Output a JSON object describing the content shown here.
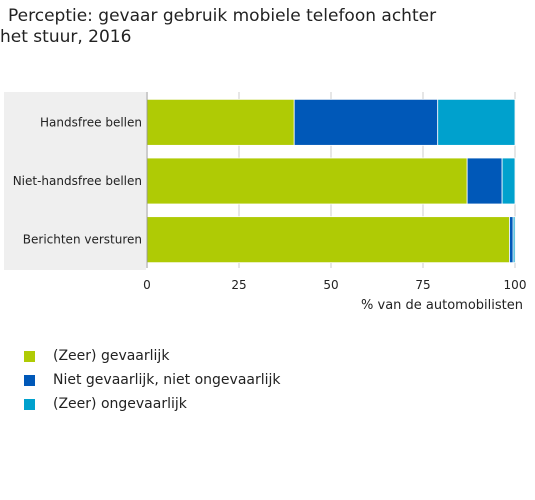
{
  "title_lines": [
    "Perceptie: gevaar gebruik mobiele telefoon achter",
    "het stuur, 2016"
  ],
  "chart_data": {
    "type": "bar",
    "orientation": "horizontal",
    "stacked": true,
    "title": "Perceptie: gevaar gebruik mobiele telefoon achter het stuur, 2016",
    "categories": [
      "Handsfree bellen",
      "Niet-handsfree bellen",
      "Berichten versturen"
    ],
    "series": [
      {
        "name": "(Zeer) gevaarlijk",
        "color": "#afcb05",
        "values": [
          40,
          87,
          98.5
        ]
      },
      {
        "name": "Niet gevaarlijk, niet ongevaarlijk",
        "color": "#0058b8",
        "values": [
          39,
          9.5,
          1
        ]
      },
      {
        "name": "(Zeer) ongevaarlijk",
        "color": "#00a1cd",
        "values": [
          21,
          3.5,
          0.5
        ]
      }
    ],
    "xlabel": "% van de automobilisten",
    "ylabel": "",
    "xlim": [
      0,
      100
    ],
    "xticks": [
      0,
      25,
      50,
      75,
      100
    ],
    "legend": "bottom-left",
    "grid": true
  },
  "colors": {
    "plot_background": "#efefef",
    "gridline": "#cccccc",
    "axis": "#999999"
  }
}
